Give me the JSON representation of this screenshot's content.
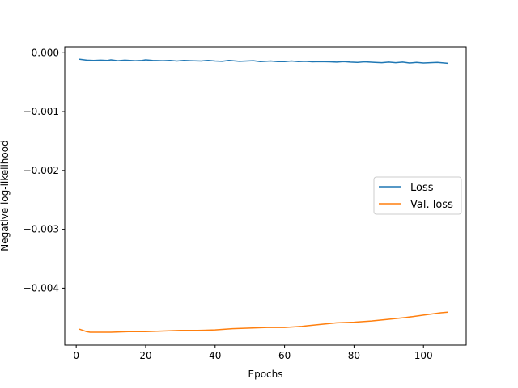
{
  "chart_data": {
    "type": "line",
    "title": "",
    "xlabel": "Epochs",
    "ylabel": "Negative log-likelihood",
    "xlim": [
      -3.3,
      112.3
    ],
    "ylim": [
      -0.00497,
      0.0001
    ],
    "xticks": [
      0,
      20,
      40,
      60,
      80,
      100
    ],
    "xtick_labels": [
      "0",
      "20",
      "40",
      "60",
      "80",
      "100"
    ],
    "yticks": [
      0.0,
      -0.001,
      -0.002,
      -0.003,
      -0.004
    ],
    "ytick_labels": [
      "0.000",
      "−0.001",
      "−0.002",
      "−0.003",
      "−0.004"
    ],
    "grid": false,
    "legend_position": "center-right",
    "series": [
      {
        "name": "Loss",
        "color": "#1f77b4",
        "x": [
          1,
          3,
          5,
          7,
          9,
          10,
          12,
          14,
          17,
          19,
          20,
          22,
          25,
          27,
          29,
          31,
          33,
          36,
          38,
          40,
          42,
          44,
          47,
          49,
          51,
          53,
          56,
          58,
          60,
          62,
          64,
          66,
          68,
          70,
          73,
          75,
          77,
          79,
          81,
          83,
          86,
          88,
          90,
          92,
          94,
          96,
          98,
          100,
          102,
          104,
          107
        ],
        "y": [
          -0.00011,
          -0.000125,
          -0.00013,
          -0.000125,
          -0.00013,
          -0.00012,
          -0.000135,
          -0.000125,
          -0.000135,
          -0.00013,
          -0.00012,
          -0.00013,
          -0.000135,
          -0.00013,
          -0.00014,
          -0.00013,
          -0.000135,
          -0.00014,
          -0.00013,
          -0.00014,
          -0.000145,
          -0.00013,
          -0.000145,
          -0.00014,
          -0.000135,
          -0.00015,
          -0.00014,
          -0.00015,
          -0.00015,
          -0.00014,
          -0.00015,
          -0.000145,
          -0.000155,
          -0.00015,
          -0.000155,
          -0.00016,
          -0.00015,
          -0.00016,
          -0.000165,
          -0.000155,
          -0.000165,
          -0.00017,
          -0.00016,
          -0.00017,
          -0.00016,
          -0.000175,
          -0.000165,
          -0.000175,
          -0.00017,
          -0.000165,
          -0.00018
        ]
      },
      {
        "name": "Val. loss",
        "color": "#ff7f0e",
        "x": [
          1,
          2,
          3,
          4,
          5,
          7,
          10,
          15,
          20,
          25,
          30,
          35,
          40,
          45,
          50,
          55,
          60,
          65,
          70,
          75,
          80,
          85,
          90,
          95,
          100,
          105,
          107
        ],
        "y": [
          -0.0047,
          -0.00472,
          -0.00474,
          -0.00475,
          -0.00475,
          -0.00475,
          -0.00475,
          -0.00474,
          -0.00474,
          -0.00473,
          -0.00472,
          -0.00472,
          -0.00471,
          -0.00469,
          -0.00468,
          -0.00467,
          -0.00467,
          -0.00465,
          -0.00462,
          -0.00459,
          -0.00458,
          -0.00456,
          -0.00453,
          -0.0045,
          -0.00446,
          -0.00442,
          -0.00441
        ]
      }
    ]
  }
}
